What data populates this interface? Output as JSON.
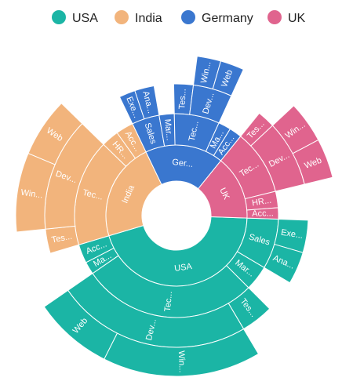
{
  "chart_data": {
    "type": "sunburst",
    "legend_position": "top",
    "colors": {
      "USA": "#1bb5a5",
      "India": "#f2b47c",
      "Germany": "#3a77cf",
      "UK": "#e0648e"
    },
    "legend": [
      "USA",
      "India",
      "Germany",
      "UK"
    ],
    "root": [
      {
        "name": "USA",
        "label": "USA",
        "children": [
          {
            "name": "Sales",
            "label": "Sales",
            "children": [
              {
                "name": "Executive",
                "label": "Exe...",
                "value": 2
              },
              {
                "name": "Analyst",
                "label": "Ana...",
                "value": 2
              }
            ]
          },
          {
            "name": "Marketing",
            "label": "Mar...",
            "value": 2
          },
          {
            "name": "Technical",
            "label": "Tec...",
            "children": [
              {
                "name": "Testers",
                "label": "Tes...",
                "value": 2
              },
              {
                "name": "Developers",
                "label": "Dev...",
                "children": [
                  {
                    "name": "Windows",
                    "label": "Win...",
                    "value": 8
                  },
                  {
                    "name": "Web",
                    "label": "Web",
                    "value": 4
                  }
                ]
              }
            ]
          },
          {
            "name": "Management",
            "label": "Ma...",
            "value": 1
          },
          {
            "name": "Accounts",
            "label": "Acc...",
            "value": 1.5
          }
        ]
      },
      {
        "name": "India",
        "label": "India",
        "children": [
          {
            "name": "Technical",
            "label": "Tec...",
            "children": [
              {
                "name": "Testers",
                "label": "Tes...",
                "value": 1.5
              },
              {
                "name": "Developers",
                "label": "Dev...",
                "children": [
                  {
                    "name": "Windows",
                    "label": "Win...",
                    "value": 4
                  },
                  {
                    "name": "Web",
                    "label": "Web",
                    "value": 3
                  }
                ]
              }
            ]
          },
          {
            "name": "HR",
            "label": "HR...",
            "value": 1.4
          },
          {
            "name": "Accounts",
            "label": "Acc...",
            "value": 1.4
          }
        ]
      },
      {
        "name": "Germany",
        "label": "Ger...",
        "children": [
          {
            "name": "Sales",
            "label": "Sales",
            "children": [
              {
                "name": "Executive",
                "label": "Exe...",
                "value": 1
              },
              {
                "name": "Analyst",
                "label": "Ana...",
                "value": 1.2
              }
            ]
          },
          {
            "name": "Marketing",
            "label": "Mar...",
            "value": 1.2
          },
          {
            "name": "Technical",
            "label": "Tec...",
            "children": [
              {
                "name": "Testers",
                "label": "Tes...",
                "value": 1.2
              },
              {
                "name": "Developers",
                "label": "Dev...",
                "children": [
                  {
                    "name": "Windows",
                    "label": "Win...",
                    "value": 1.2
                  },
                  {
                    "name": "Web",
                    "label": "Web",
                    "value": 1.2
                  }
                ]
              }
            ]
          },
          {
            "name": "Management",
            "label": "Ma...",
            "value": 1
          },
          {
            "name": "Accounts",
            "label": "Acc...",
            "value": 1
          }
        ]
      },
      {
        "name": "UK",
        "label": "UK",
        "children": [
          {
            "name": "Technical",
            "label": "Tec...",
            "children": [
              {
                "name": "Testers",
                "label": "Tes...",
                "value": 1.1
              },
              {
                "name": "Developers",
                "label": "Dev...",
                "children": [
                  {
                    "name": "Windows",
                    "label": "Win...",
                    "value": 2.1
                  },
                  {
                    "name": "Web",
                    "label": "Web",
                    "value": 2
                  }
                ]
              }
            ]
          },
          {
            "name": "HR",
            "label": "HR...",
            "value": 1.3
          },
          {
            "name": "Accounts",
            "label": "Acc...",
            "value": 0.9
          }
        ]
      }
    ]
  }
}
